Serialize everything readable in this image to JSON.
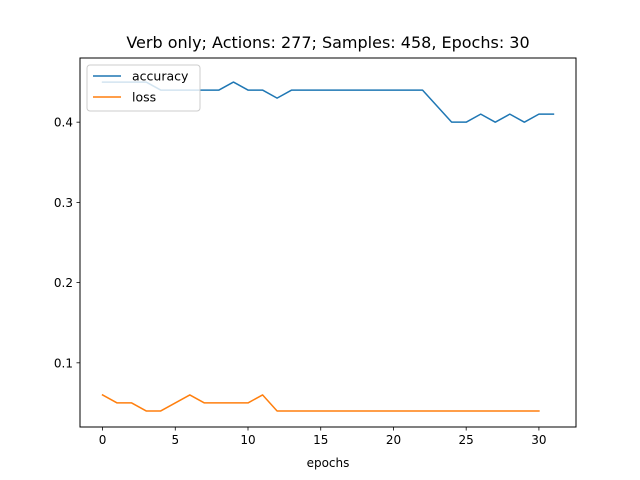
{
  "chart_data": {
    "type": "line",
    "title": "Verb only; Actions: 277; Samples: 458, Epochs: 30",
    "xlabel": "epochs",
    "ylabel": "",
    "xlim": [
      -1.55,
      32.55
    ],
    "ylim": [
      0.02,
      0.48
    ],
    "xticks": [
      0,
      5,
      10,
      15,
      20,
      25,
      30
    ],
    "yticks": [
      0.1,
      0.2,
      0.3,
      0.4
    ],
    "grid": false,
    "legend_position": "upper left",
    "series": [
      {
        "name": "accuracy",
        "color": "#1f77b4",
        "x": [
          0,
          1,
          2,
          3,
          4,
          5,
          6,
          7,
          8,
          9,
          10,
          11,
          12,
          13,
          14,
          15,
          16,
          17,
          18,
          19,
          20,
          21,
          22,
          23,
          24,
          25,
          26,
          27,
          28,
          29,
          30,
          31
        ],
        "y": [
          0.45,
          0.45,
          0.45,
          0.45,
          0.44,
          0.44,
          0.44,
          0.44,
          0.44,
          0.45,
          0.44,
          0.44,
          0.43,
          0.44,
          0.44,
          0.44,
          0.44,
          0.44,
          0.44,
          0.44,
          0.44,
          0.44,
          0.44,
          0.42,
          0.4,
          0.4,
          0.41,
          0.4,
          0.41,
          0.4,
          0.41,
          0.41
        ]
      },
      {
        "name": "loss",
        "color": "#ff7f0e",
        "x": [
          0,
          1,
          2,
          3,
          4,
          5,
          6,
          7,
          8,
          9,
          10,
          11,
          12,
          13,
          14,
          15,
          16,
          17,
          18,
          19,
          20,
          21,
          22,
          23,
          24,
          25,
          26,
          27,
          28,
          29,
          30
        ],
        "y": [
          0.06,
          0.05,
          0.05,
          0.04,
          0.04,
          0.05,
          0.06,
          0.05,
          0.05,
          0.05,
          0.05,
          0.06,
          0.04,
          0.04,
          0.04,
          0.04,
          0.04,
          0.04,
          0.04,
          0.04,
          0.04,
          0.04,
          0.04,
          0.04,
          0.04,
          0.04,
          0.04,
          0.04,
          0.04,
          0.04,
          0.04
        ]
      }
    ]
  }
}
